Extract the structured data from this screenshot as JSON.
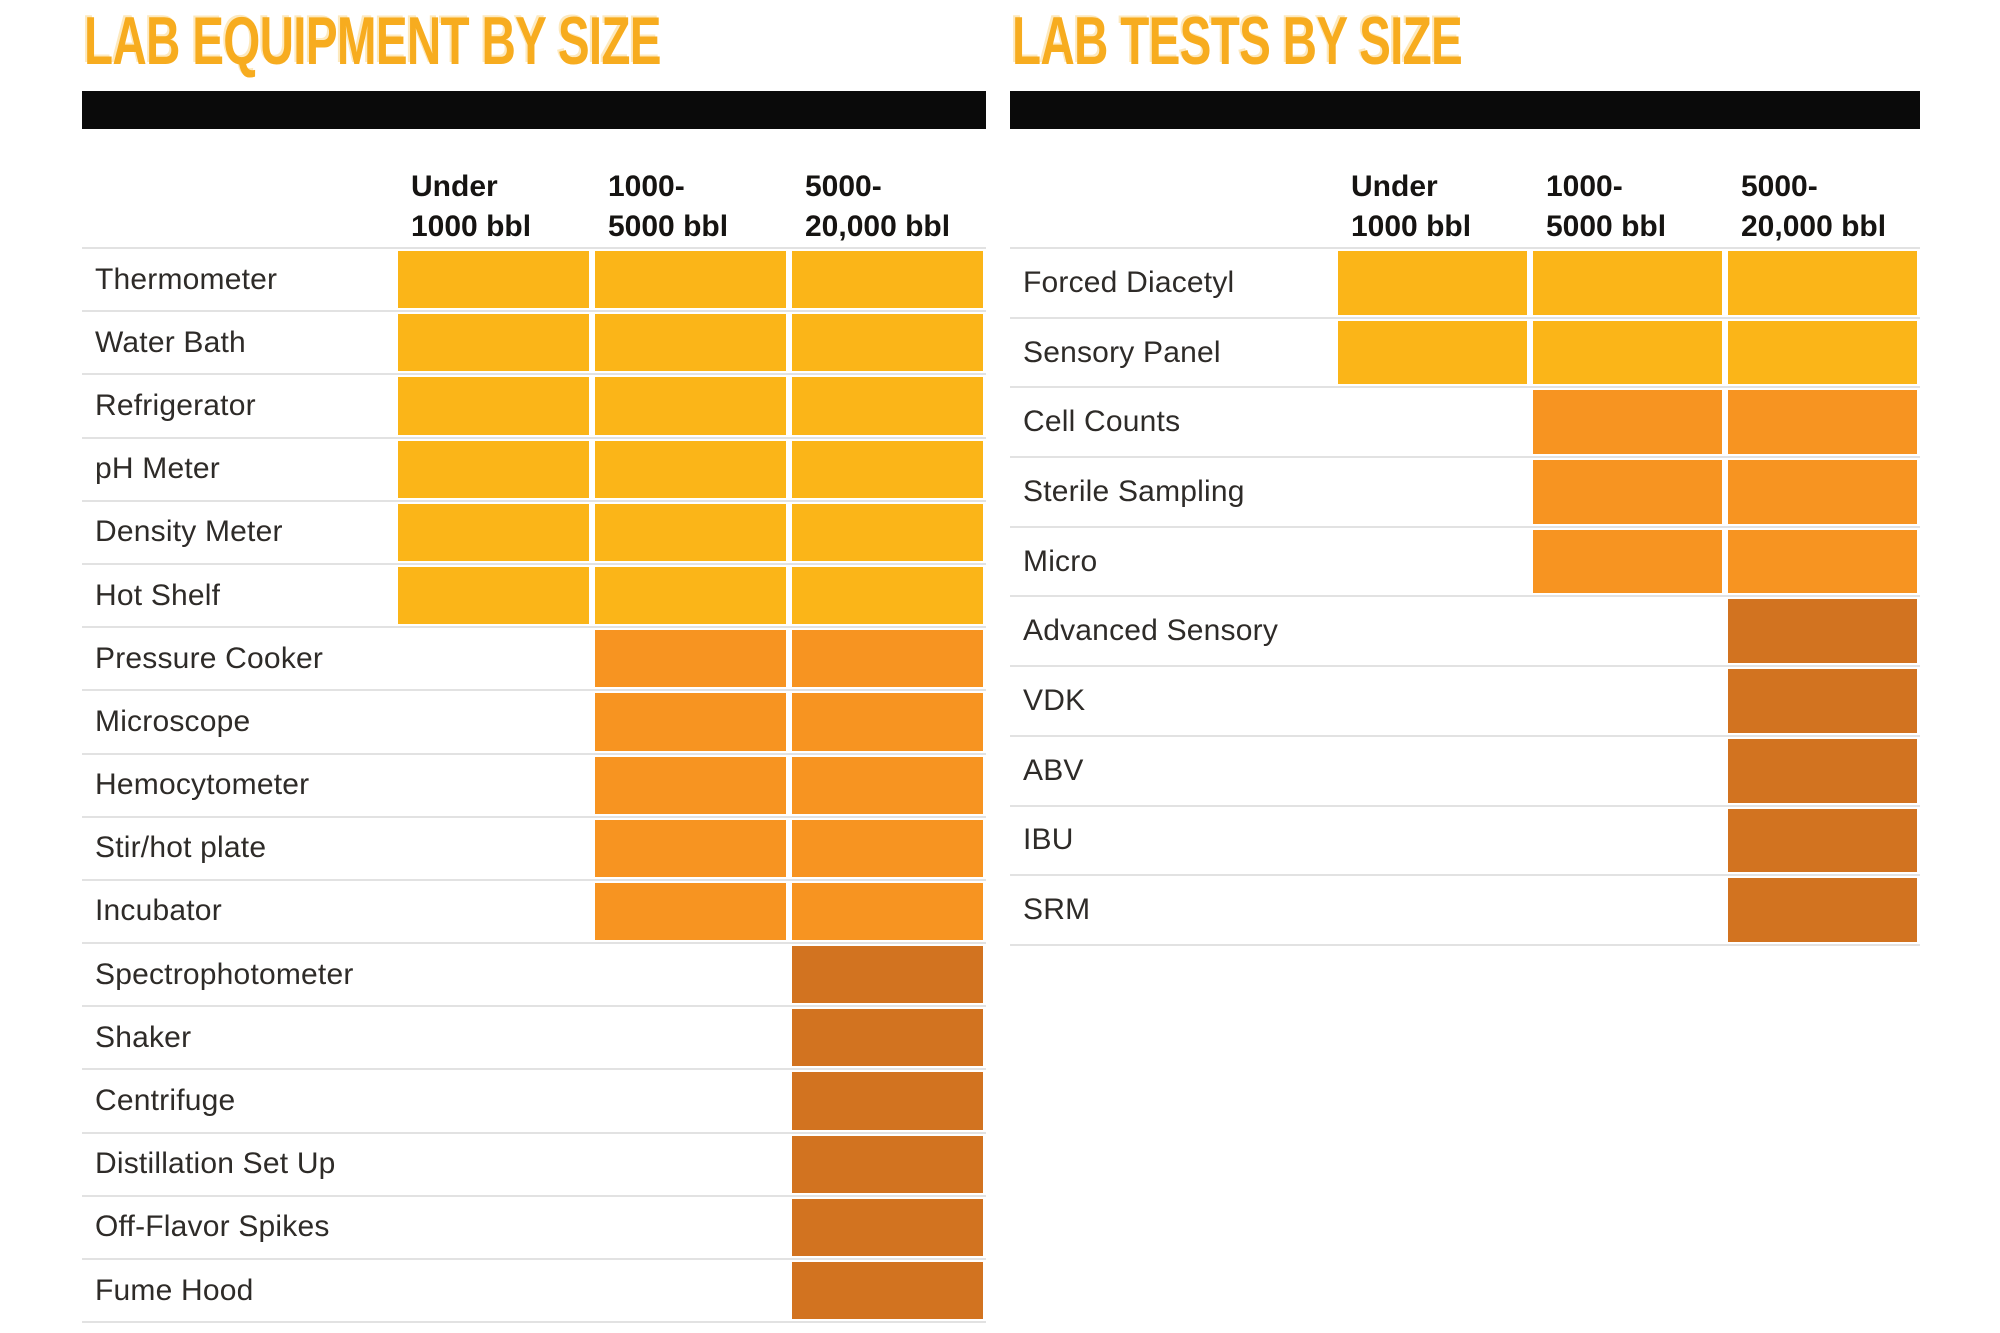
{
  "colors": {
    "title_text": "#F7AC1F",
    "bar_black": "#0A0A0A",
    "row_divider": "#E2E2E2",
    "label_text": "#2E2B28",
    "tier_small": "#FBB518",
    "tier_medium": "#F79421",
    "tier_large": "#D27320"
  },
  "chart_data": [
    {
      "type": "heatmap",
      "title": "LAB EQUIPMENT BY SIZE",
      "columns": [
        {
          "line1": "Under",
          "line2": "1000 bbl"
        },
        {
          "line1": "1000-",
          "line2": "5000 bbl"
        },
        {
          "line1": "5000-",
          "line2": "20,000 bbl"
        }
      ],
      "rows": [
        {
          "label": "Thermometer",
          "tier": "tier_small",
          "filled": [
            true,
            true,
            true
          ]
        },
        {
          "label": "Water Bath",
          "tier": "tier_small",
          "filled": [
            true,
            true,
            true
          ]
        },
        {
          "label": "Refrigerator",
          "tier": "tier_small",
          "filled": [
            true,
            true,
            true
          ]
        },
        {
          "label": "pH Meter",
          "tier": "tier_small",
          "filled": [
            true,
            true,
            true
          ]
        },
        {
          "label": "Density Meter",
          "tier": "tier_small",
          "filled": [
            true,
            true,
            true
          ]
        },
        {
          "label": "Hot Shelf",
          "tier": "tier_small",
          "filled": [
            true,
            true,
            true
          ]
        },
        {
          "label": "Pressure Cooker",
          "tier": "tier_medium",
          "filled": [
            false,
            true,
            true
          ]
        },
        {
          "label": "Microscope",
          "tier": "tier_medium",
          "filled": [
            false,
            true,
            true
          ]
        },
        {
          "label": "Hemocytometer",
          "tier": "tier_medium",
          "filled": [
            false,
            true,
            true
          ]
        },
        {
          "label": "Stir/hot plate",
          "tier": "tier_medium",
          "filled": [
            false,
            true,
            true
          ]
        },
        {
          "label": "Incubator",
          "tier": "tier_medium",
          "filled": [
            false,
            true,
            true
          ]
        },
        {
          "label": "Spectrophotometer",
          "tier": "tier_large",
          "filled": [
            false,
            false,
            true
          ]
        },
        {
          "label": "Shaker",
          "tier": "tier_large",
          "filled": [
            false,
            false,
            true
          ]
        },
        {
          "label": "Centrifuge",
          "tier": "tier_large",
          "filled": [
            false,
            false,
            true
          ]
        },
        {
          "label": "Distillation Set Up",
          "tier": "tier_large",
          "filled": [
            false,
            false,
            true
          ]
        },
        {
          "label": "Off-Flavor Spikes",
          "tier": "tier_large",
          "filled": [
            false,
            false,
            true
          ]
        },
        {
          "label": "Fume Hood",
          "tier": "tier_large",
          "filled": [
            false,
            false,
            true
          ]
        }
      ]
    },
    {
      "type": "heatmap",
      "title": "LAB TESTS BY SIZE",
      "columns": [
        {
          "line1": "Under",
          "line2": "1000 bbl"
        },
        {
          "line1": "1000-",
          "line2": "5000 bbl"
        },
        {
          "line1": "5000-",
          "line2": "20,000 bbl"
        }
      ],
      "rows": [
        {
          "label": "Forced Diacetyl",
          "tier": "tier_small",
          "filled": [
            true,
            true,
            true
          ]
        },
        {
          "label": "Sensory Panel",
          "tier": "tier_small",
          "filled": [
            true,
            true,
            true
          ]
        },
        {
          "label": "Cell Counts",
          "tier": "tier_medium",
          "filled": [
            false,
            true,
            true
          ]
        },
        {
          "label": "Sterile Sampling",
          "tier": "tier_medium",
          "filled": [
            false,
            true,
            true
          ]
        },
        {
          "label": "Micro",
          "tier": "tier_medium",
          "filled": [
            false,
            true,
            true
          ]
        },
        {
          "label": "Advanced Sensory",
          "tier": "tier_large",
          "filled": [
            false,
            false,
            true
          ]
        },
        {
          "label": "VDK",
          "tier": "tier_large",
          "filled": [
            false,
            false,
            true
          ]
        },
        {
          "label": "ABV",
          "tier": "tier_large",
          "filled": [
            false,
            false,
            true
          ]
        },
        {
          "label": "IBU",
          "tier": "tier_large",
          "filled": [
            false,
            false,
            true
          ]
        },
        {
          "label": "SRM",
          "tier": "tier_large",
          "filled": [
            false,
            false,
            true
          ]
        }
      ]
    }
  ]
}
